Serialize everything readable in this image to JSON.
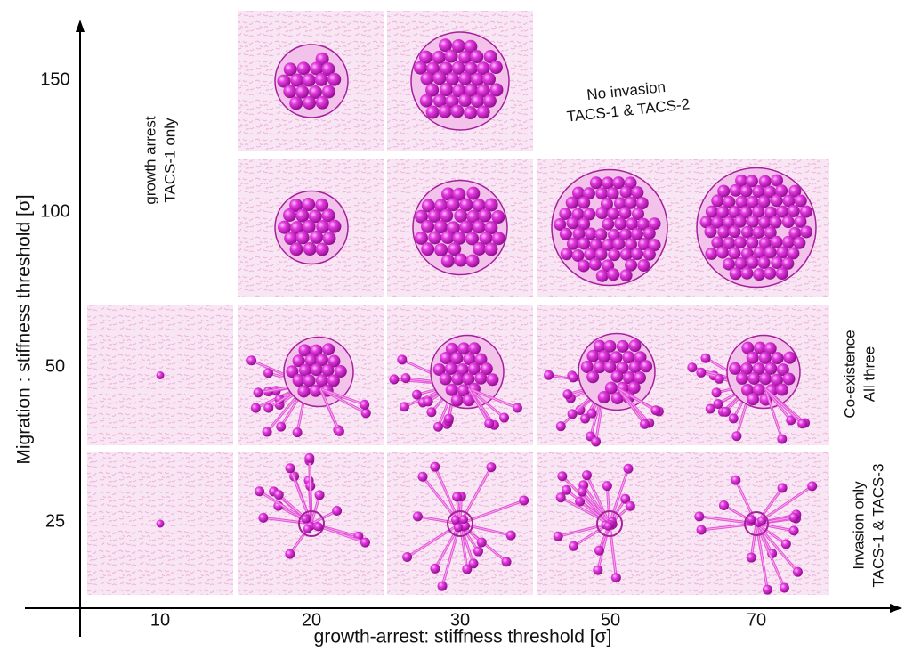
{
  "y_axis": {
    "label": "Migration : stiffness threshold [σ]",
    "ticks": [
      "150",
      "100",
      "50",
      "25"
    ]
  },
  "x_axis": {
    "label": "growth-arrest: stiffness threshold [σ]",
    "ticks": [
      "10",
      "20",
      "30",
      "50",
      "70"
    ]
  },
  "annotations": [
    {
      "lines": [
        "No invasion",
        "TACS-1 & TACS-2"
      ]
    },
    {
      "lines": [
        "growth arrest",
        "TACS-1 only"
      ]
    },
    {
      "lines": [
        "Co-existence",
        "All three"
      ]
    },
    {
      "lines": [
        "Invasion only",
        "TACS-1 & TACS-3"
      ]
    }
  ]
}
